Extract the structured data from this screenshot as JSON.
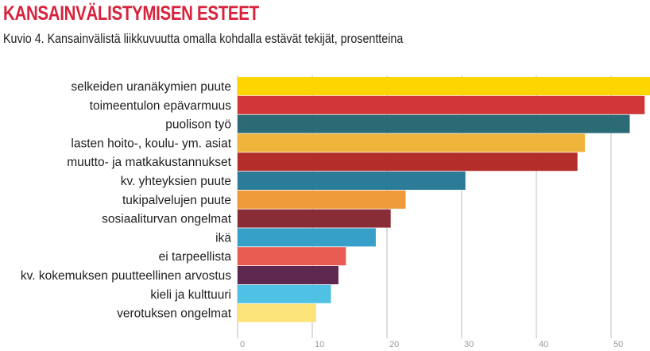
{
  "chart_data": {
    "type": "bar",
    "orientation": "horizontal",
    "title": "KANSAINVÄLISTYMISEN ESTEET",
    "subtitle": "Kuvio 4. Kansainvälistä liikkuvuutta omalla kohdalla estävät tekijät, prosentteina",
    "xlabel": "",
    "ylabel": "",
    "xlim": [
      0,
      55
    ],
    "xticks": [
      "0",
      "10",
      "20",
      "30",
      "40",
      "50"
    ],
    "grid": true,
    "categories": [
      "selkeiden uranäkymien puute",
      "toimeentulon epävarmuus",
      "puolison työ",
      "lasten hoito-, koulu- ym. asiat",
      "muutto- ja matkakustannukset",
      "kv. yhteyksien puute",
      "tukipalvelujen puute",
      "sosiaaliturvan ongelmat",
      "ikä",
      "ei tarpeellista",
      "kv. kokemuksen puutteellinen arvostus",
      "kieli ja kulttuuri",
      "verotuksen ongelmat"
    ],
    "values": [
      55.5,
      54.5,
      52.5,
      46.5,
      45.5,
      30.5,
      22.5,
      20.5,
      18.5,
      14.5,
      13.5,
      12.5,
      10.5
    ],
    "colors": [
      "#fdd600",
      "#d13639",
      "#2b6b76",
      "#f0b43d",
      "#b32d2a",
      "#2b7c98",
      "#ef9a3a",
      "#882c36",
      "#37a0c8",
      "#e95c52",
      "#5e2750",
      "#4fc1e4",
      "#fbe37a"
    ]
  }
}
